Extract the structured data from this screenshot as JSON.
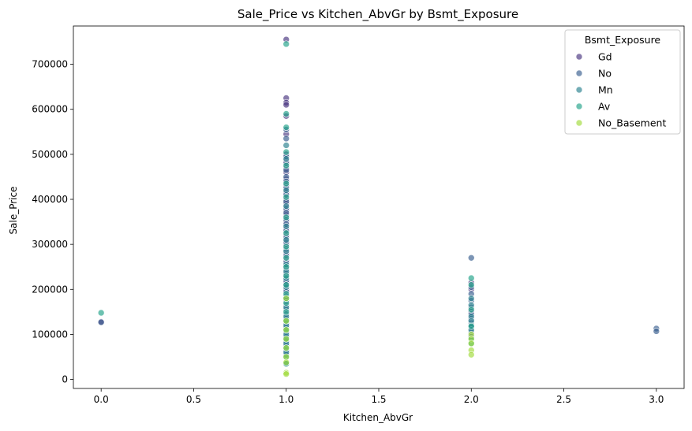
{
  "chart_data": {
    "type": "scatter",
    "title": "Sale_Price vs Kitchen_AbvGr by Bsmt_Exposure",
    "xlabel": "Kitchen_AbvGr",
    "ylabel": "Sale_Price",
    "xlim": [
      -0.15,
      3.15
    ],
    "ylim": [
      -20000,
      785000
    ],
    "xticks": [
      0.0,
      0.5,
      1.0,
      1.5,
      2.0,
      2.5,
      3.0
    ],
    "xtick_labels": [
      "0.0",
      "0.5",
      "1.0",
      "1.5",
      "2.0",
      "2.5",
      "3.0"
    ],
    "yticks": [
      0,
      100000,
      200000,
      300000,
      400000,
      500000,
      600000,
      700000
    ],
    "ytick_labels": [
      "0",
      "100000",
      "200000",
      "300000",
      "400000",
      "500000",
      "600000",
      "700000"
    ],
    "grid": false,
    "legend": {
      "title": "Bsmt_Exposure",
      "position": "top-right"
    },
    "series": [
      {
        "name": "Gd",
        "color": "#46337e",
        "points": [
          [
            1,
            755000
          ],
          [
            1,
            625000
          ],
          [
            1,
            615000
          ],
          [
            1,
            610000
          ],
          [
            1,
            585000
          ],
          [
            1,
            545000
          ],
          [
            1,
            500000
          ],
          [
            1,
            485000
          ],
          [
            1,
            470000
          ],
          [
            1,
            460000
          ],
          [
            1,
            445000
          ],
          [
            1,
            430000
          ],
          [
            1,
            415000
          ],
          [
            1,
            400000
          ],
          [
            1,
            390000
          ],
          [
            1,
            375000
          ],
          [
            1,
            365000
          ],
          [
            1,
            350000
          ],
          [
            1,
            335000
          ],
          [
            1,
            320000
          ],
          [
            1,
            300000
          ],
          [
            1,
            280000
          ],
          [
            1,
            265000
          ],
          [
            1,
            250000
          ],
          [
            1,
            230000
          ],
          [
            1,
            215000
          ],
          [
            1,
            200000
          ],
          [
            2,
            215000
          ],
          [
            2,
            200000
          ],
          [
            2,
            150000
          ],
          [
            0,
            128000
          ]
        ]
      },
      {
        "name": "No",
        "color": "#365c8d",
        "points": [
          [
            1,
            555000
          ],
          [
            1,
            535000
          ],
          [
            1,
            495000
          ],
          [
            1,
            480000
          ],
          [
            1,
            465000
          ],
          [
            1,
            450000
          ],
          [
            1,
            440000
          ],
          [
            1,
            425000
          ],
          [
            1,
            410000
          ],
          [
            1,
            395000
          ],
          [
            1,
            380000
          ],
          [
            1,
            370000
          ],
          [
            1,
            355000
          ],
          [
            1,
            345000
          ],
          [
            1,
            330000
          ],
          [
            1,
            315000
          ],
          [
            1,
            305000
          ],
          [
            1,
            290000
          ],
          [
            1,
            275000
          ],
          [
            1,
            260000
          ],
          [
            1,
            245000
          ],
          [
            1,
            235000
          ],
          [
            1,
            220000
          ],
          [
            1,
            210000
          ],
          [
            1,
            195000
          ],
          [
            1,
            185000
          ],
          [
            1,
            175000
          ],
          [
            1,
            165000
          ],
          [
            1,
            155000
          ],
          [
            1,
            145000
          ],
          [
            1,
            135000
          ],
          [
            1,
            125000
          ],
          [
            1,
            115000
          ],
          [
            1,
            105000
          ],
          [
            1,
            95000
          ],
          [
            1,
            85000
          ],
          [
            1,
            75000
          ],
          [
            1,
            65000
          ],
          [
            1,
            55000
          ],
          [
            1,
            35000
          ],
          [
            2,
            270000
          ],
          [
            2,
            205000
          ],
          [
            2,
            190000
          ],
          [
            2,
            175000
          ],
          [
            2,
            160000
          ],
          [
            2,
            145000
          ],
          [
            2,
            135000
          ],
          [
            2,
            125000
          ],
          [
            2,
            115000
          ],
          [
            2,
            105000
          ],
          [
            2,
            95000
          ],
          [
            3,
            113000
          ],
          [
            3,
            107000
          ],
          [
            0,
            127000
          ]
        ]
      },
      {
        "name": "Mn",
        "color": "#277f8e",
        "points": [
          [
            1,
            520000
          ],
          [
            1,
            490000
          ],
          [
            1,
            420000
          ],
          [
            1,
            385000
          ],
          [
            1,
            340000
          ],
          [
            1,
            310000
          ],
          [
            1,
            285000
          ],
          [
            1,
            255000
          ],
          [
            1,
            240000
          ],
          [
            1,
            225000
          ],
          [
            1,
            205000
          ],
          [
            1,
            180000
          ],
          [
            1,
            160000
          ],
          [
            1,
            140000
          ],
          [
            1,
            120000
          ],
          [
            1,
            100000
          ],
          [
            1,
            80000
          ],
          [
            1,
            60000
          ],
          [
            2,
            180000
          ],
          [
            2,
            165000
          ],
          [
            2,
            140000
          ],
          [
            2,
            130000
          ],
          [
            2,
            120000
          ],
          [
            2,
            110000
          ]
        ]
      },
      {
        "name": "Av",
        "color": "#1fa187",
        "points": [
          [
            1,
            745000
          ],
          [
            1,
            590000
          ],
          [
            1,
            560000
          ],
          [
            1,
            505000
          ],
          [
            1,
            475000
          ],
          [
            1,
            435000
          ],
          [
            1,
            405000
          ],
          [
            1,
            360000
          ],
          [
            1,
            325000
          ],
          [
            1,
            295000
          ],
          [
            1,
            270000
          ],
          [
            1,
            250000
          ],
          [
            1,
            230000
          ],
          [
            1,
            210000
          ],
          [
            1,
            190000
          ],
          [
            1,
            170000
          ],
          [
            1,
            150000
          ],
          [
            1,
            130000
          ],
          [
            1,
            110000
          ],
          [
            1,
            90000
          ],
          [
            1,
            70000
          ],
          [
            1,
            50000
          ],
          [
            1,
            35000
          ],
          [
            2,
            225000
          ],
          [
            2,
            210000
          ],
          [
            2,
            155000
          ],
          [
            2,
            118000
          ],
          [
            2,
            90000
          ],
          [
            2,
            80000
          ],
          [
            0,
            148000
          ]
        ]
      },
      {
        "name": "No_Basement",
        "color": "#a0da39",
        "points": [
          [
            1,
            180000
          ],
          [
            1,
            130000
          ],
          [
            1,
            110000
          ],
          [
            1,
            90000
          ],
          [
            1,
            70000
          ],
          [
            1,
            50000
          ],
          [
            1,
            38000
          ],
          [
            1,
            15000
          ],
          [
            1,
            12000
          ],
          [
            2,
            100000
          ],
          [
            2,
            90000
          ],
          [
            2,
            80000
          ],
          [
            2,
            65000
          ],
          [
            2,
            55000
          ]
        ]
      }
    ]
  }
}
